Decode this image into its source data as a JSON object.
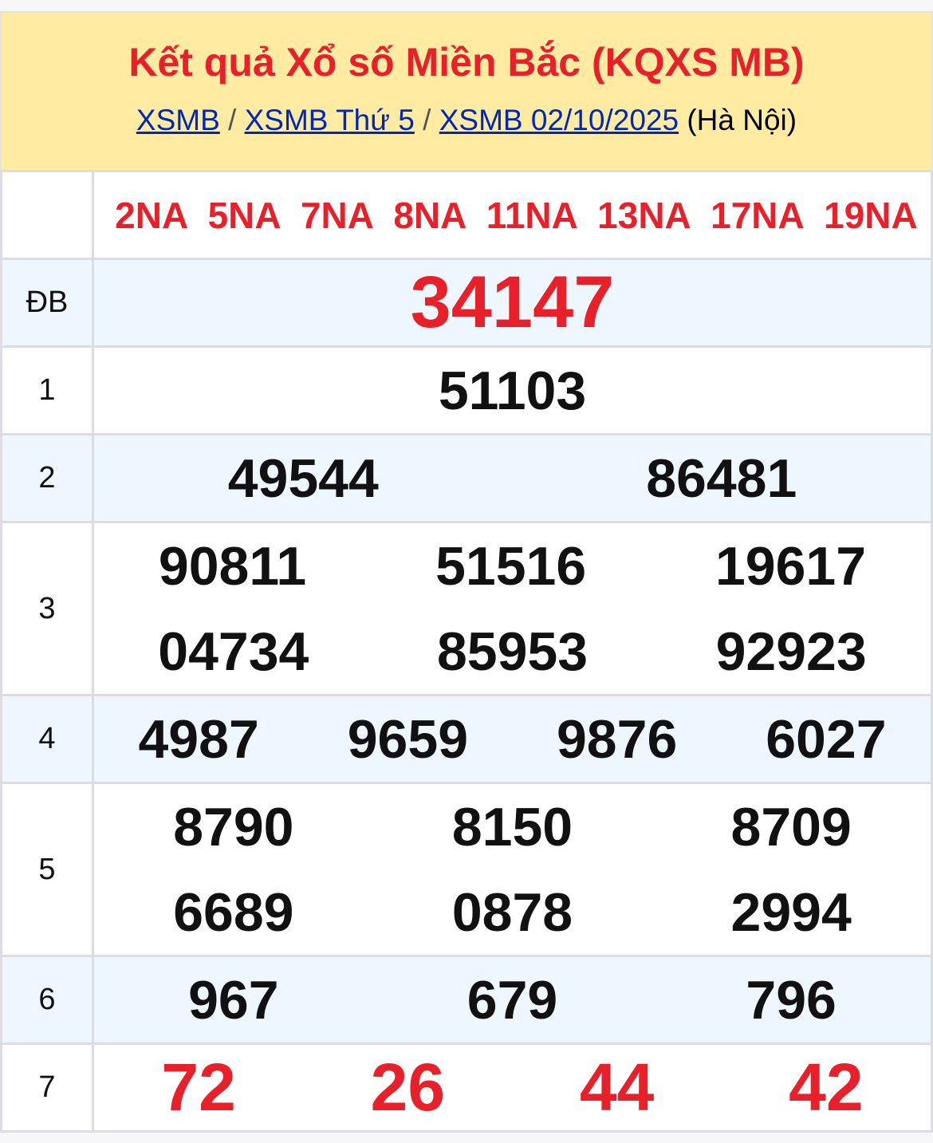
{
  "header": {
    "title": "Kết quả Xổ số Miền Bắc (KQXS MB)",
    "breadcrumb": [
      "XSMB",
      "XSMB Thứ 5",
      "XSMB 02/10/2025"
    ],
    "separator": "/",
    "region": "(Hà Nội)"
  },
  "codes": [
    "2NA",
    "5NA",
    "7NA",
    "8NA",
    "11NA",
    "13NA",
    "17NA",
    "19NA"
  ],
  "prizes": {
    "db": {
      "label": "ĐB",
      "numbers": [
        "34147"
      ]
    },
    "p1": {
      "label": "1",
      "numbers": [
        "51103"
      ]
    },
    "p2": {
      "label": "2",
      "numbers": [
        "49544",
        "86481"
      ]
    },
    "p3": {
      "label": "3",
      "numbers": [
        "90811",
        "51516",
        "19617",
        "04734",
        "85953",
        "92923"
      ]
    },
    "p4": {
      "label": "4",
      "numbers": [
        "4987",
        "9659",
        "9876",
        "6027"
      ]
    },
    "p5": {
      "label": "5",
      "numbers": [
        "8790",
        "8150",
        "8709",
        "6689",
        "0878",
        "2994"
      ]
    },
    "p6": {
      "label": "6",
      "numbers": [
        "967",
        "679",
        "796"
      ]
    },
    "p7": {
      "label": "7",
      "numbers": [
        "72",
        "26",
        "44",
        "42"
      ]
    }
  },
  "colors": {
    "accent": "#e8202a",
    "header_bg": "#ffeba1",
    "link": "#0028b8",
    "alt_row": "#eef6ff"
  }
}
